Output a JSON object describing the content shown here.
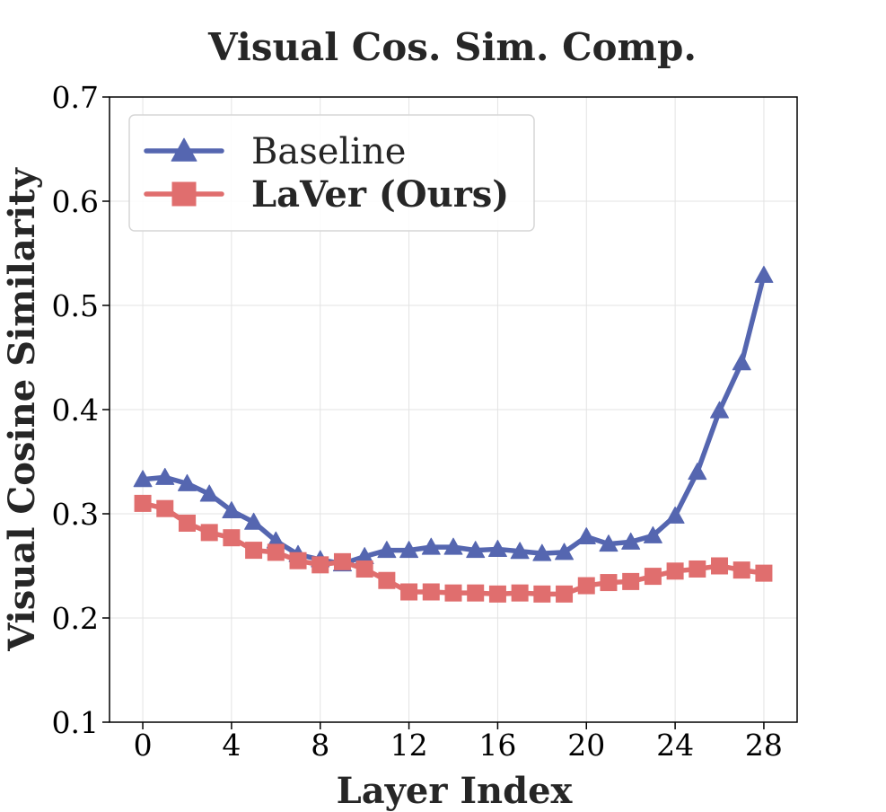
{
  "chart_data": {
    "type": "line",
    "title": "Visual Cos. Sim. Comp.",
    "xlabel": "Layer Index",
    "ylabel": "Visual Cosine Similarity",
    "xlim": [
      -1.5,
      29.5
    ],
    "ylim": [
      0.1,
      0.7
    ],
    "xticks": [
      0,
      4,
      8,
      12,
      16,
      20,
      24,
      28
    ],
    "yticks": [
      0.1,
      0.2,
      0.3,
      0.4,
      0.5,
      0.6,
      0.7
    ],
    "xtick_labels": [
      "0",
      "4",
      "8",
      "12",
      "16",
      "20",
      "24",
      "28"
    ],
    "ytick_labels": [
      "0.1",
      "0.2",
      "0.3",
      "0.4",
      "0.5",
      "0.6",
      "0.7"
    ],
    "grid": true,
    "legend_position": "top-left",
    "x": [
      0,
      1,
      2,
      3,
      4,
      5,
      6,
      7,
      8,
      9,
      10,
      11,
      12,
      13,
      14,
      15,
      16,
      17,
      18,
      19,
      20,
      21,
      22,
      23,
      24,
      25,
      26,
      27,
      28
    ],
    "series": [
      {
        "name": "Baseline",
        "marker": "triangle",
        "color": "#5566b0",
        "bold_label": false,
        "values": [
          0.333,
          0.335,
          0.329,
          0.319,
          0.303,
          0.292,
          0.274,
          0.261,
          0.256,
          0.252,
          0.259,
          0.265,
          0.265,
          0.268,
          0.268,
          0.265,
          0.266,
          0.264,
          0.262,
          0.263,
          0.278,
          0.271,
          0.273,
          0.279,
          0.298,
          0.34,
          0.399,
          0.445,
          0.529
        ]
      },
      {
        "name": "LaVer (Ours)",
        "marker": "square",
        "color": "#e06e6e",
        "bold_label": true,
        "values": [
          0.31,
          0.305,
          0.291,
          0.282,
          0.277,
          0.265,
          0.263,
          0.255,
          0.251,
          0.254,
          0.247,
          0.236,
          0.225,
          0.225,
          0.224,
          0.224,
          0.223,
          0.224,
          0.223,
          0.223,
          0.231,
          0.234,
          0.235,
          0.24,
          0.245,
          0.247,
          0.25,
          0.246,
          0.243
        ]
      }
    ]
  }
}
